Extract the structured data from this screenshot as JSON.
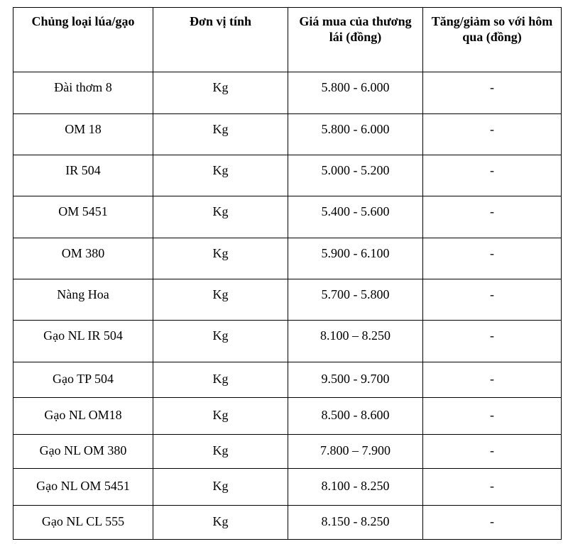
{
  "table": {
    "header": [
      "Chủng loại lúa/gạo",
      "Đơn vị tính",
      "Giá mua của thương lái (đồng)",
      "Tăng/giảm so với hôm qua (đồng)"
    ],
    "rows": [
      [
        "Đài thơm 8",
        "Kg",
        "5.800 - 6.000",
        "-"
      ],
      [
        "OM 18",
        "Kg",
        "5.800 - 6.000",
        "-"
      ],
      [
        "IR 504",
        "Kg",
        "5.000 - 5.200",
        "-"
      ],
      [
        "OM 5451",
        "Kg",
        "5.400 - 5.600",
        "-"
      ],
      [
        "OM 380",
        "Kg",
        "5.900 - 6.100",
        "-"
      ],
      [
        "Nàng Hoa",
        "Kg",
        "5.700 - 5.800",
        "-"
      ],
      [
        "Gạo NL IR 504",
        "Kg",
        "8.100 – 8.250",
        "-"
      ],
      [
        "Gạo TP 504",
        "Kg",
        "9.500 - 9.700",
        "-"
      ],
      [
        "Gạo NL OM18",
        "Kg",
        "8.500 - 8.600",
        "-"
      ],
      [
        "Gạo NL OM 380",
        "Kg",
        "7.800 – 7.900",
        "-"
      ],
      [
        "Gạo NL OM 5451",
        "Kg",
        "8.100 - 8.250",
        "-"
      ],
      [
        "Gạo NL CL 555",
        "Kg",
        "8.150 - 8.250",
        "-"
      ]
    ]
  }
}
